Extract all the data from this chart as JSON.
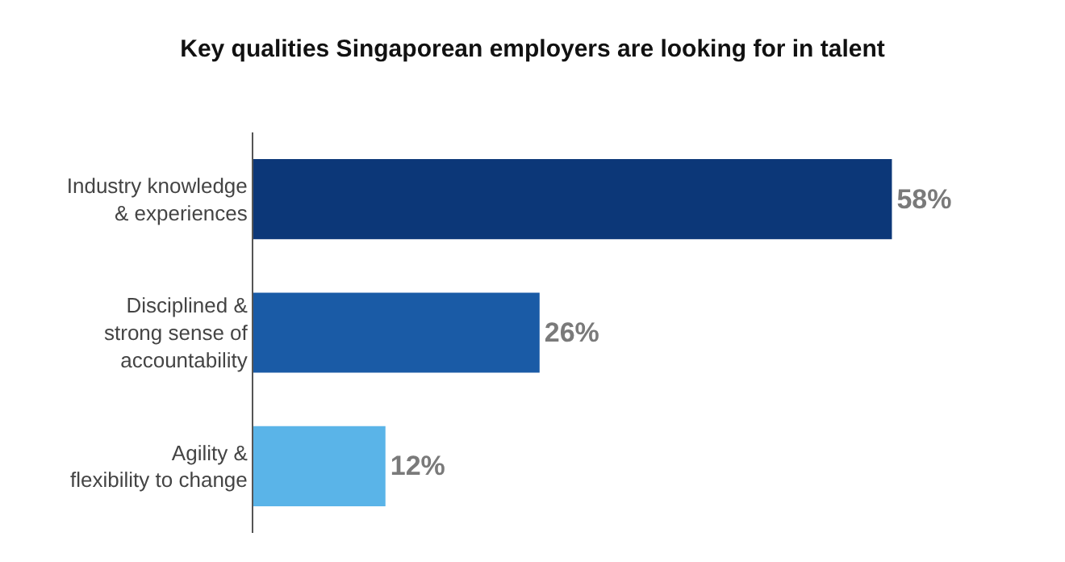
{
  "chart_data": {
    "type": "bar",
    "orientation": "horizontal",
    "title": "Key qualities Singaporean employers are looking for in talent",
    "categories": [
      "Industry knowledge\n& experiences",
      "Disciplined &\nstrong sense of\naccountability",
      "Agility &\nflexibility to change"
    ],
    "values": [
      58,
      26,
      12
    ],
    "colors": [
      "#0c3778",
      "#1a5ba6",
      "#5ab4e8"
    ],
    "value_labels": [
      "58%",
      "26%",
      "12%"
    ]
  }
}
